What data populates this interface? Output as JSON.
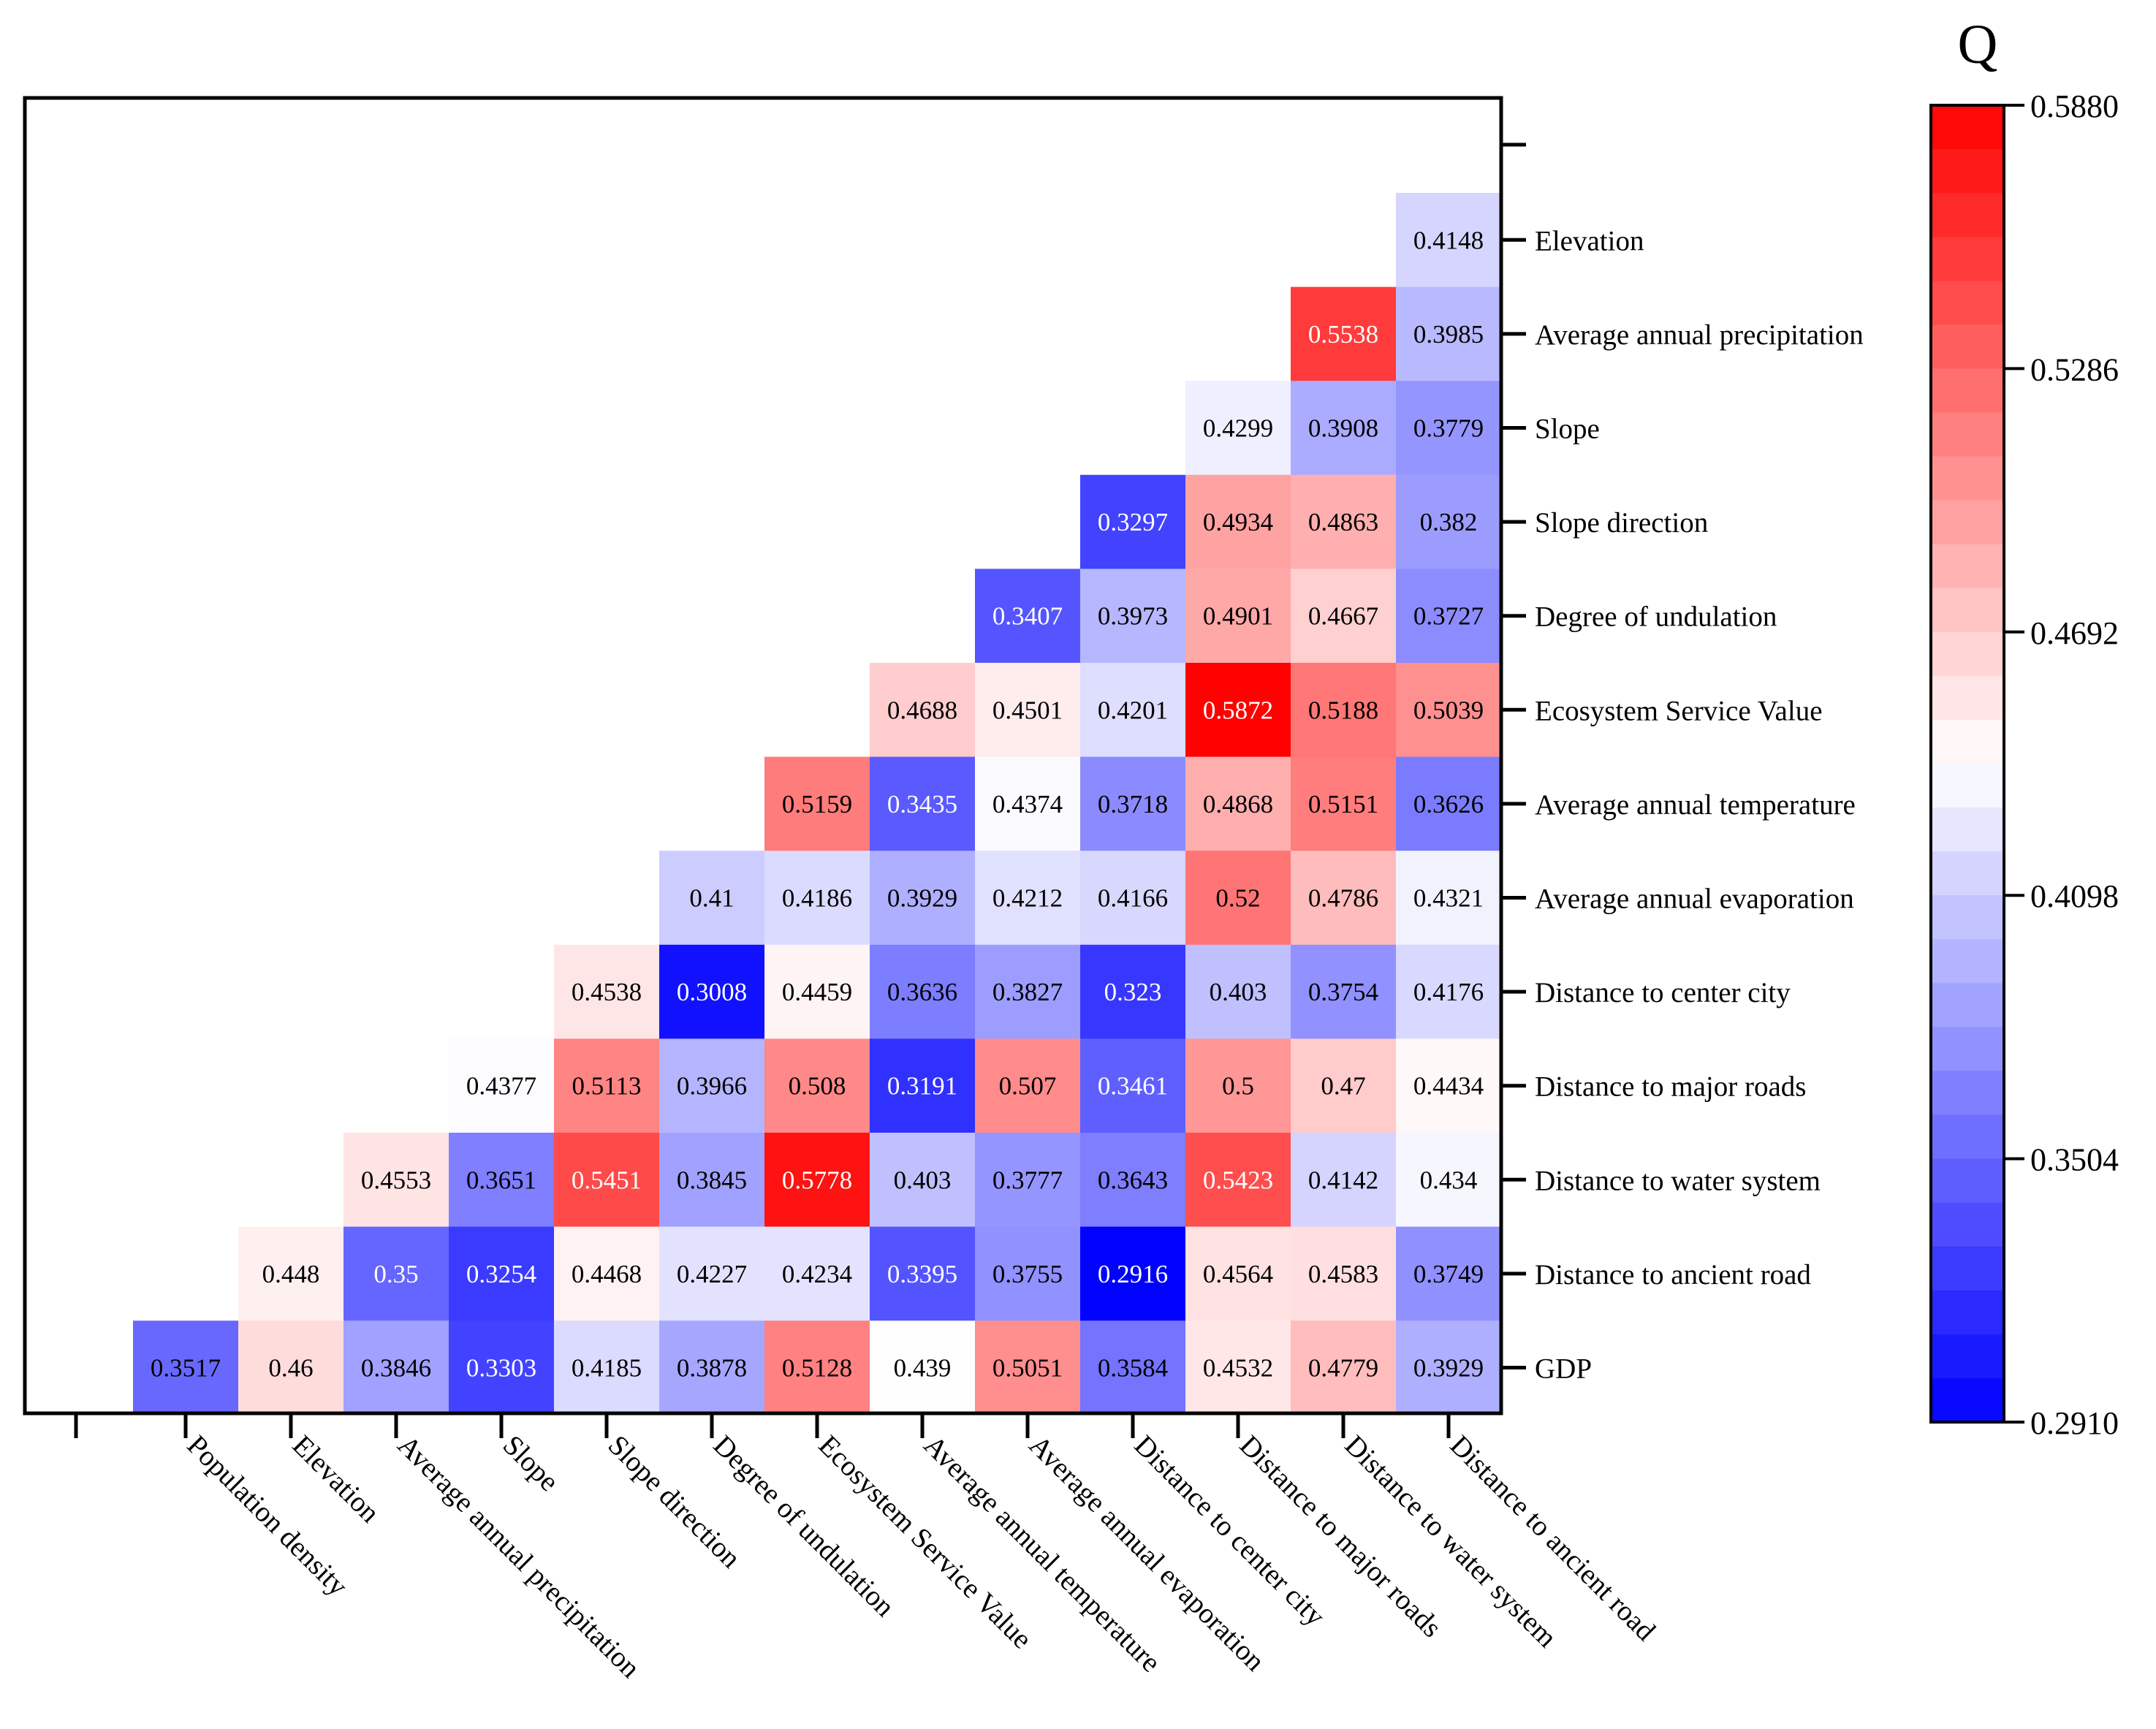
{
  "chart_data": {
    "type": "heatmap",
    "title": "",
    "colorbar_title": "Q",
    "colorbar_ticks": [
      "0.5880",
      "0.5286",
      "0.4692",
      "0.4098",
      "0.3504",
      "0.2910"
    ],
    "vmin": 0.291,
    "vmax": 0.588,
    "colors": {
      "low": "#0000ff",
      "mid": "#ffffff",
      "high": "#ff0000",
      "text_dark": "#000000",
      "text_light": "#ffffff"
    },
    "x_labels": [
      "Population density",
      "Elevation",
      "Average annual precipitation",
      "Slope",
      "Slope direction",
      "Degree of undulation",
      "Ecosystem Service Value",
      "Average annual temperature",
      "Average annual evaporation",
      "Distance to center city",
      "Distance to major roads",
      "Distance to water system",
      "Distance to ancient road"
    ],
    "y_labels": [
      "Elevation",
      "Average annual precipitation",
      "Slope",
      "Slope direction",
      "Degree of undulation",
      "Ecosystem Service Value",
      "Average annual temperature",
      "Average annual evaporation",
      "Distance to center city",
      "Distance to major roads",
      "Distance to water system",
      "Distance to ancient road",
      "GDP"
    ],
    "rows": [
      {
        "y": "Elevation",
        "values": [
          "0.4148"
        ]
      },
      {
        "y": "Average annual precipitation",
        "values": [
          "0.5538",
          "0.3985"
        ]
      },
      {
        "y": "Slope",
        "values": [
          "0.4299",
          "0.3908",
          "0.3779"
        ]
      },
      {
        "y": "Slope direction",
        "values": [
          "0.3297",
          "0.4934",
          "0.4863",
          "0.382"
        ]
      },
      {
        "y": "Degree of undulation",
        "values": [
          "0.3407",
          "0.3973",
          "0.4901",
          "0.4667",
          "0.3727"
        ]
      },
      {
        "y": "Ecosystem Service Value",
        "values": [
          "0.4688",
          "0.4501",
          "0.4201",
          "0.5872",
          "0.5188",
          "0.5039"
        ]
      },
      {
        "y": "Average annual temperature",
        "values": [
          "0.5159",
          "0.3435",
          "0.4374",
          "0.3718",
          "0.4868",
          "0.5151",
          "0.3626"
        ]
      },
      {
        "y": "Average annual evaporation",
        "values": [
          "0.41",
          "0.4186",
          "0.3929",
          "0.4212",
          "0.4166",
          "0.52",
          "0.4786",
          "0.4321"
        ]
      },
      {
        "y": "Distance to center city",
        "values": [
          "0.4538",
          "0.3008",
          "0.4459",
          "0.3636",
          "0.3827",
          "0.323",
          "0.403",
          "0.3754",
          "0.4176"
        ]
      },
      {
        "y": "Distance to major roads",
        "values": [
          "0.4377",
          "0.5113",
          "0.3966",
          "0.508",
          "0.3191",
          "0.507",
          "0.3461",
          "0.5",
          "0.47",
          "0.4434"
        ]
      },
      {
        "y": "Distance to water system",
        "values": [
          "0.4553",
          "0.3651",
          "0.5451",
          "0.3845",
          "0.5778",
          "0.403",
          "0.3777",
          "0.3643",
          "0.5423",
          "0.4142",
          "0.434"
        ]
      },
      {
        "y": "Distance to ancient road",
        "values": [
          "0.448",
          "0.35",
          "0.3254",
          "0.4468",
          "0.4227",
          "0.4234",
          "0.3395",
          "0.3755",
          "0.2916",
          "0.4564",
          "0.4583",
          "0.3749"
        ]
      },
      {
        "y": "GDP",
        "values": [
          "0.3517",
          "0.46",
          "0.3846",
          "0.3303",
          "0.4185",
          "0.3878",
          "0.5128",
          "0.439",
          "0.5051",
          "0.3584",
          "0.4532",
          "0.4779",
          "0.3929"
        ]
      }
    ]
  }
}
